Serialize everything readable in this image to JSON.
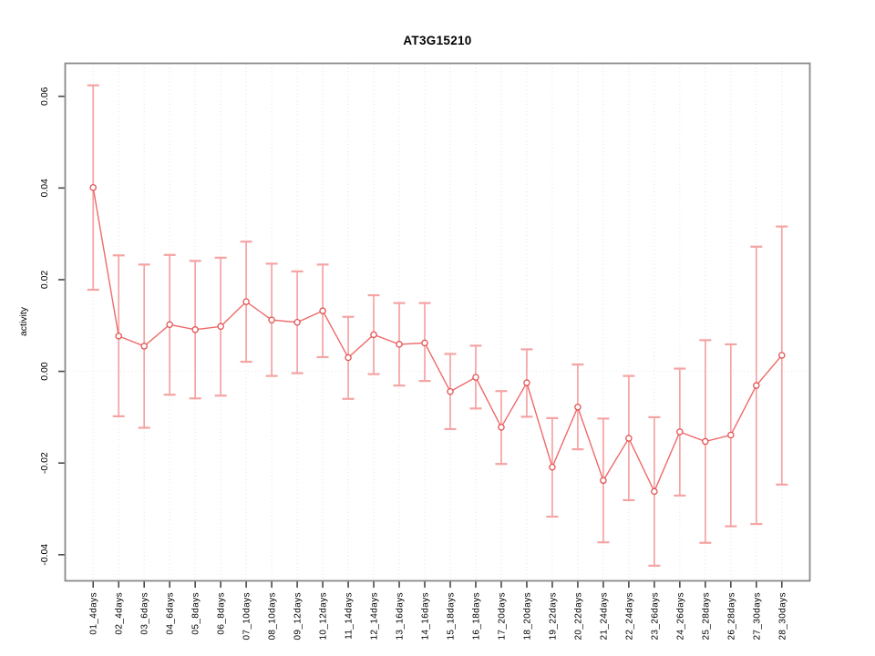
{
  "title": "AT3G15210",
  "chart_data": {
    "type": "line",
    "title": "AT3G15210",
    "xlabel": "",
    "ylabel": "activity",
    "legend": "none",
    "grid": "vertical dotted gridlines at each category; dotted horizontal line at y=0",
    "categories": [
      "01_4days",
      "02_4days",
      "03_6days",
      "04_6days",
      "05_8days",
      "06_8days",
      "07_10days",
      "08_10days",
      "09_12days",
      "10_12days",
      "11_14days",
      "12_14days",
      "13_16days",
      "14_16days",
      "15_18days",
      "16_18days",
      "17_20days",
      "18_20days",
      "19_22days",
      "20_22days",
      "21_24days",
      "22_24days",
      "23_26days",
      "24_26days",
      "25_28days",
      "26_28days",
      "27_30days",
      "28_30days"
    ],
    "series": [
      {
        "name": "mean",
        "values": [
          0.0401,
          0.0077,
          0.0055,
          0.0102,
          0.0091,
          0.0098,
          0.0152,
          0.0112,
          0.0107,
          0.0132,
          0.003,
          0.008,
          0.0059,
          0.0062,
          -0.0044,
          -0.0013,
          -0.0122,
          -0.0025,
          -0.0209,
          -0.0078,
          -0.0238,
          -0.0146,
          -0.0262,
          -0.0132,
          -0.0153,
          -0.0139,
          -0.0031,
          0.0035
        ]
      },
      {
        "name": "ci_lower",
        "values": [
          0.0178,
          -0.0098,
          -0.0123,
          -0.0051,
          -0.0059,
          -0.0053,
          0.0021,
          -0.001,
          -0.0004,
          0.0031,
          -0.006,
          -0.0006,
          -0.0031,
          -0.0021,
          -0.0126,
          -0.0081,
          -0.0202,
          -0.0099,
          -0.0317,
          -0.017,
          -0.0373,
          -0.0281,
          -0.0424,
          -0.0271,
          -0.0374,
          -0.0338,
          -0.0333,
          -0.0247
        ]
      },
      {
        "name": "ci_upper",
        "values": [
          0.0624,
          0.0253,
          0.0233,
          0.0254,
          0.0241,
          0.0248,
          0.0283,
          0.0235,
          0.0218,
          0.0233,
          0.0119,
          0.0166,
          0.0149,
          0.0149,
          0.0038,
          0.0056,
          -0.0043,
          0.0048,
          -0.0102,
          0.0015,
          -0.0103,
          -0.001,
          -0.01,
          0.0006,
          0.0068,
          0.0059,
          0.0272,
          0.0316
        ]
      }
    ],
    "yticks": [
      -0.04,
      -0.02,
      0,
      0.02,
      0.04,
      0.06
    ],
    "ytick_labels": [
      "-0.04",
      "-0.02",
      "0.00",
      "0.02",
      "0.04",
      "0.06"
    ],
    "ylim": [
      -0.0456,
      0.0671
    ],
    "xlim": [
      -0.08,
      29.08
    ],
    "colors": {
      "errorbar": "#f5a3a3",
      "line": "#ef6a6a",
      "marker_stroke": "#e25353",
      "marker_fill": "#ffffff",
      "gridline": "#e4e4e4",
      "zero_line": "#e9e9e9",
      "box": "#8a8a8a",
      "tick": "#474747",
      "text": "#000000"
    }
  }
}
